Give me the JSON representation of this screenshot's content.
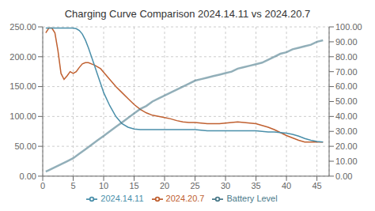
{
  "chart_data": {
    "type": "line",
    "title": "Charging Curve Comparison 2024.14.11 vs 2024.20.7",
    "xlim": [
      0,
      47
    ],
    "xticks": [
      0,
      5,
      10,
      15,
      20,
      25,
      30,
      35,
      40,
      45
    ],
    "ylim": [
      0,
      250
    ],
    "yticks": [
      {
        "value": 0,
        "label": "0.00"
      },
      {
        "value": 50,
        "label": "50.00"
      },
      {
        "value": 100,
        "label": "100.00"
      },
      {
        "value": 150,
        "label": "150.00"
      },
      {
        "value": 200,
        "label": "200.00"
      },
      {
        "value": 250,
        "label": "250.00"
      }
    ],
    "y2lim": [
      0,
      100
    ],
    "y2ticks": [
      {
        "value": 0,
        "label": "0.00"
      },
      {
        "value": 10,
        "label": "10.00"
      },
      {
        "value": 20,
        "label": "20.00"
      },
      {
        "value": 30,
        "label": "30.00"
      },
      {
        "value": 40,
        "label": "40.00"
      },
      {
        "value": 50,
        "label": "50.00"
      },
      {
        "value": 60,
        "label": "60.00"
      },
      {
        "value": 70,
        "label": "70.00"
      },
      {
        "value": 80,
        "label": "80.00"
      },
      {
        "value": 90,
        "label": "90.00"
      },
      {
        "value": 100,
        "label": "100.00"
      }
    ],
    "grid": true,
    "legend": "bottom",
    "series": [
      {
        "name": "2024.20.7",
        "color": "#c06030",
        "x": [
          0.5,
          1.0,
          1.5,
          2.0,
          2.5,
          3.0,
          3.5,
          4.0,
          4.5,
          5.0,
          5.5,
          6.0,
          6.5,
          7.0,
          7.5,
          8.0,
          8.5,
          9.0,
          9.5,
          10.0,
          11.0,
          12.0,
          13.0,
          14.0,
          15.0,
          16.0,
          17.0,
          18.0,
          19.0,
          20.0,
          21.0,
          22.0,
          23.0,
          24.0,
          25.0,
          26.0,
          27.0,
          28.0,
          29.0,
          30.0,
          31.0,
          32.0,
          33.0,
          34.0,
          35.0,
          36.0,
          37.0,
          38.0,
          39.0,
          40.0,
          41.0,
          42.0,
          43.0,
          44.0,
          45.0,
          46.0
        ],
        "values": [
          240,
          248,
          248,
          240,
          210,
          172,
          162,
          168,
          175,
          172,
          175,
          182,
          188,
          190,
          190,
          188,
          186,
          183,
          180,
          174,
          162,
          150,
          140,
          130,
          120,
          112,
          106,
          102,
          100,
          98,
          96,
          93,
          91,
          90,
          90,
          89,
          88,
          88,
          88,
          89,
          90,
          91,
          90,
          89,
          88,
          85,
          82,
          78,
          73,
          68,
          64,
          60,
          57,
          57,
          57,
          57
        ]
      },
      {
        "name": "2024.14.11",
        "color": "#4a8faa",
        "x": [
          0.5,
          1.0,
          1.5,
          2.0,
          2.5,
          3.0,
          3.5,
          4.0,
          4.5,
          5.0,
          5.5,
          6.0,
          6.5,
          7.0,
          7.5,
          8.0,
          8.5,
          9.0,
          9.5,
          10.0,
          11.0,
          12.0,
          13.0,
          14.0,
          15.0,
          16.0,
          17.0,
          18.0,
          19.0,
          20.0,
          21.0,
          22.0,
          23.0,
          24.0,
          25.0,
          26.0,
          27.0,
          28.0,
          29.0,
          30.0,
          31.0,
          32.0,
          33.0,
          34.0,
          35.0,
          36.0,
          37.0,
          38.0,
          39.0,
          40.0,
          41.0,
          42.0,
          43.0,
          44.0,
          45.0,
          46.0
        ],
        "values": [
          248,
          248,
          248,
          248,
          248,
          248,
          248,
          248,
          248,
          248,
          247,
          244,
          238,
          228,
          215,
          200,
          185,
          170,
          155,
          140,
          118,
          100,
          88,
          82,
          79,
          78,
          78,
          78,
          78,
          78,
          78,
          78,
          78,
          78,
          78,
          77,
          76,
          76,
          76,
          76,
          76,
          76,
          76,
          76,
          76,
          75,
          74,
          74,
          73,
          72,
          70,
          67,
          63,
          60,
          58,
          57
        ]
      },
      {
        "name": "Battery Level",
        "color": "#4a7a8a",
        "axis": "y2",
        "x": [
          0.5,
          1.0,
          2.0,
          3.0,
          4.0,
          5.0,
          6.0,
          7.0,
          8.0,
          9.0,
          10.0,
          11.0,
          12.0,
          13.0,
          14.0,
          15.0,
          16.0,
          17.0,
          18.0,
          19.0,
          20.0,
          21.0,
          22.0,
          23.0,
          24.0,
          25.0,
          26.0,
          27.0,
          28.0,
          29.0,
          30.0,
          31.0,
          32.0,
          33.0,
          34.0,
          35.0,
          36.0,
          37.0,
          38.0,
          39.0,
          40.0,
          41.0,
          42.0,
          43.0,
          44.0,
          45.0,
          46.0
        ],
        "values": [
          3,
          4,
          6,
          8,
          10,
          12,
          15,
          18,
          21,
          24,
          27,
          30,
          33,
          36,
          39,
          42,
          45,
          47,
          50,
          52,
          54,
          56,
          58,
          60,
          62,
          64,
          65,
          66,
          67,
          68,
          69,
          70,
          72,
          73,
          74,
          75,
          76,
          78,
          80,
          82,
          83,
          85,
          86,
          87,
          88,
          90,
          91
        ]
      }
    ]
  }
}
